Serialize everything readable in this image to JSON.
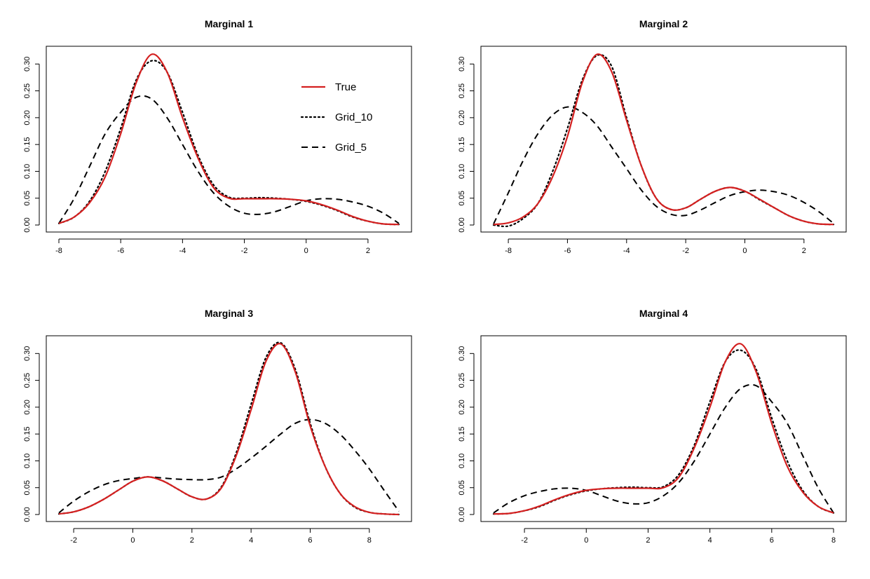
{
  "figure_title": "",
  "chart_data": [
    {
      "type": "line",
      "title": "Marginal 1",
      "xlabel": "",
      "ylabel": "",
      "xlim": [
        -8,
        3
      ],
      "ylim": [
        0,
        0.32
      ],
      "xticks": [
        -8,
        -6,
        -4,
        -2,
        0,
        2
      ],
      "xtick_labels": [
        "-8",
        "-6",
        "-4",
        "-2",
        "0",
        "2"
      ],
      "yticks": [
        0,
        0.05,
        0.1,
        0.15,
        0.2,
        0.25,
        0.3
      ],
      "ytick_labels": [
        "0.00",
        "0.05",
        "0.10",
        "0.15",
        "0.20",
        "0.25",
        "0.30"
      ],
      "legend": {
        "position": "top-right",
        "entries": [
          "True",
          "Grid_10",
          "Grid_5"
        ]
      },
      "series": [
        {
          "name": "True",
          "color": "#d42020",
          "style": "solid",
          "x": [
            -8,
            -7.5,
            -7,
            -6.5,
            -6,
            -5.5,
            -5,
            -4.5,
            -4,
            -3.5,
            -3,
            -2.5,
            -2,
            -1.5,
            -1,
            -0.5,
            0,
            0.5,
            1,
            1.5,
            2,
            2.5,
            3
          ],
          "y": [
            0.003,
            0.015,
            0.042,
            0.09,
            0.17,
            0.265,
            0.318,
            0.285,
            0.2,
            0.125,
            0.07,
            0.05,
            0.049,
            0.049,
            0.049,
            0.048,
            0.045,
            0.038,
            0.028,
            0.016,
            0.007,
            0.002,
            0.001
          ]
        },
        {
          "name": "Grid_10",
          "color": "#000000",
          "style": "dotted",
          "x": [
            -8,
            -7.5,
            -7,
            -6.5,
            -6,
            -5.5,
            -5,
            -4.5,
            -4,
            -3.5,
            -3,
            -2.5,
            -2,
            -1.5,
            -1,
            -0.5,
            0,
            0.5,
            1,
            1.5,
            2,
            2.5,
            3
          ],
          "y": [
            0.003,
            0.015,
            0.045,
            0.1,
            0.18,
            0.27,
            0.306,
            0.285,
            0.21,
            0.13,
            0.075,
            0.052,
            0.05,
            0.051,
            0.05,
            0.048,
            0.044,
            0.037,
            0.027,
            0.015,
            0.007,
            0.002,
            0.001
          ]
        },
        {
          "name": "Grid_5",
          "color": "#000000",
          "style": "dashed",
          "x": [
            -8,
            -7.5,
            -7,
            -6.5,
            -6,
            -5.5,
            -5,
            -4.5,
            -4,
            -3.5,
            -3,
            -2.5,
            -2,
            -1.5,
            -1,
            -0.5,
            0,
            0.5,
            1,
            1.5,
            2,
            2.5,
            3
          ],
          "y": [
            0.003,
            0.05,
            0.11,
            0.17,
            0.21,
            0.238,
            0.235,
            0.2,
            0.15,
            0.1,
            0.06,
            0.035,
            0.022,
            0.02,
            0.025,
            0.035,
            0.045,
            0.049,
            0.048,
            0.043,
            0.035,
            0.022,
            0.003
          ]
        }
      ]
    },
    {
      "type": "line",
      "title": "Marginal 2",
      "xlabel": "",
      "ylabel": "",
      "xlim": [
        -8.5,
        3
      ],
      "ylim": [
        0,
        0.32
      ],
      "xticks": [
        -8,
        -6,
        -4,
        -2,
        0,
        2
      ],
      "xtick_labels": [
        "-8",
        "-6",
        "-4",
        "-2",
        "0",
        "2"
      ],
      "yticks": [
        0,
        0.05,
        0.1,
        0.15,
        0.2,
        0.25,
        0.3
      ],
      "ytick_labels": [
        "0.00",
        "0.05",
        "0.10",
        "0.15",
        "0.20",
        "0.25",
        "0.30"
      ],
      "legend": null,
      "series": [
        {
          "name": "True",
          "color": "#d42020",
          "style": "solid",
          "x": [
            -8.5,
            -8,
            -7.5,
            -7,
            -6.5,
            -6,
            -5.5,
            -5,
            -4.5,
            -4,
            -3.5,
            -3,
            -2.5,
            -2,
            -1.5,
            -1,
            -0.5,
            0,
            0.5,
            1,
            1.5,
            2,
            2.5,
            3
          ],
          "y": [
            0.001,
            0.004,
            0.015,
            0.04,
            0.09,
            0.165,
            0.265,
            0.318,
            0.285,
            0.195,
            0.11,
            0.05,
            0.029,
            0.032,
            0.048,
            0.063,
            0.07,
            0.063,
            0.048,
            0.032,
            0.017,
            0.007,
            0.002,
            0.001
          ]
        },
        {
          "name": "Grid_10",
          "color": "#000000",
          "style": "dotted",
          "x": [
            -8.5,
            -8,
            -7.5,
            -7,
            -6.5,
            -6,
            -5.5,
            -5,
            -4.5,
            -4,
            -3.5,
            -3,
            -2.5,
            -2,
            -1.5,
            -1,
            -0.5,
            0,
            0.5,
            1,
            1.5,
            2,
            2.5,
            3
          ],
          "y": [
            0.0,
            -0.002,
            0.012,
            0.04,
            0.1,
            0.18,
            0.27,
            0.316,
            0.295,
            0.2,
            0.11,
            0.05,
            0.029,
            0.032,
            0.048,
            0.063,
            0.07,
            0.063,
            0.047,
            0.032,
            0.017,
            0.007,
            0.002,
            0.001
          ]
        },
        {
          "name": "Grid_5",
          "color": "#000000",
          "style": "dashed",
          "x": [
            -8.5,
            -8,
            -7.5,
            -7,
            -6.5,
            -6,
            -5.5,
            -5,
            -4.5,
            -4,
            -3.5,
            -3,
            -2.5,
            -2,
            -1.5,
            -1,
            -0.5,
            0,
            0.5,
            1,
            1.5,
            2,
            2.5,
            3
          ],
          "y": [
            0.002,
            0.06,
            0.12,
            0.17,
            0.205,
            0.22,
            0.21,
            0.185,
            0.145,
            0.105,
            0.065,
            0.035,
            0.02,
            0.018,
            0.028,
            0.042,
            0.055,
            0.062,
            0.065,
            0.062,
            0.055,
            0.042,
            0.025,
            0.003
          ]
        }
      ]
    },
    {
      "type": "line",
      "title": "Marginal 3",
      "xlabel": "",
      "ylabel": "",
      "xlim": [
        -2.5,
        9
      ],
      "ylim": [
        0,
        0.32
      ],
      "xticks": [
        -2,
        0,
        2,
        4,
        6,
        8
      ],
      "xtick_labels": [
        "-2",
        "0",
        "2",
        "4",
        "6",
        "8"
      ],
      "yticks": [
        0,
        0.05,
        0.1,
        0.15,
        0.2,
        0.25,
        0.3
      ],
      "ytick_labels": [
        "0.00",
        "0.05",
        "0.10",
        "0.15",
        "0.20",
        "0.25",
        "0.30"
      ],
      "legend": null,
      "series": [
        {
          "name": "True",
          "color": "#d42020",
          "style": "solid",
          "x": [
            -2.5,
            -2,
            -1.5,
            -1,
            -0.5,
            0,
            0.5,
            1,
            1.5,
            2,
            2.5,
            3,
            3.5,
            4,
            4.5,
            5,
            5.5,
            6,
            6.5,
            7,
            7.5,
            8,
            8.5,
            9
          ],
          "y": [
            0.001,
            0.005,
            0.014,
            0.028,
            0.045,
            0.062,
            0.07,
            0.063,
            0.048,
            0.033,
            0.029,
            0.05,
            0.11,
            0.195,
            0.285,
            0.318,
            0.265,
            0.165,
            0.09,
            0.04,
            0.015,
            0.004,
            0.001,
            0.0
          ]
        },
        {
          "name": "Grid_10",
          "color": "#000000",
          "style": "dotted",
          "x": [
            -2.5,
            -2,
            -1.5,
            -1,
            -0.5,
            0,
            0.5,
            1,
            1.5,
            2,
            2.5,
            3,
            3.5,
            4,
            4.5,
            5,
            5.5,
            6,
            6.5,
            7,
            7.5,
            8,
            8.5,
            9
          ],
          "y": [
            0.001,
            0.005,
            0.014,
            0.028,
            0.045,
            0.062,
            0.07,
            0.063,
            0.048,
            0.033,
            0.029,
            0.052,
            0.115,
            0.205,
            0.292,
            0.32,
            0.27,
            0.17,
            0.09,
            0.04,
            0.014,
            0.004,
            0.001,
            0.0
          ]
        },
        {
          "name": "Grid_5",
          "color": "#000000",
          "style": "dashed",
          "x": [
            -2.5,
            -2,
            -1.5,
            -1,
            -0.5,
            0,
            0.5,
            1,
            1.5,
            2,
            2.5,
            3,
            3.5,
            4,
            4.5,
            5,
            5.5,
            6,
            6.5,
            7,
            7.5,
            8,
            8.5,
            9
          ],
          "y": [
            0.003,
            0.025,
            0.042,
            0.055,
            0.063,
            0.067,
            0.07,
            0.068,
            0.066,
            0.065,
            0.065,
            0.07,
            0.085,
            0.105,
            0.127,
            0.15,
            0.17,
            0.177,
            0.17,
            0.15,
            0.12,
            0.085,
            0.045,
            0.006
          ]
        }
      ]
    },
    {
      "type": "line",
      "title": "Marginal 4",
      "xlabel": "",
      "ylabel": "",
      "xlim": [
        -3,
        8
      ],
      "ylim": [
        0,
        0.32
      ],
      "xticks": [
        -2,
        0,
        2,
        4,
        6,
        8
      ],
      "xtick_labels": [
        "-2",
        "0",
        "2",
        "4",
        "6",
        "8"
      ],
      "yticks": [
        0,
        0.05,
        0.1,
        0.15,
        0.2,
        0.25,
        0.3
      ],
      "ytick_labels": [
        "0.00",
        "0.05",
        "0.10",
        "0.15",
        "0.20",
        "0.25",
        "0.30"
      ],
      "legend": null,
      "series": [
        {
          "name": "True",
          "color": "#d42020",
          "style": "solid",
          "x": [
            -3,
            -2.5,
            -2,
            -1.5,
            -1,
            -0.5,
            0,
            0.5,
            1,
            1.5,
            2,
            2.5,
            3,
            3.5,
            4,
            4.5,
            5,
            5.5,
            6,
            6.5,
            7,
            7.5,
            8
          ],
          "y": [
            0.001,
            0.002,
            0.007,
            0.016,
            0.028,
            0.038,
            0.045,
            0.048,
            0.049,
            0.049,
            0.049,
            0.05,
            0.07,
            0.125,
            0.2,
            0.285,
            0.318,
            0.265,
            0.17,
            0.09,
            0.042,
            0.015,
            0.003
          ]
        },
        {
          "name": "Grid_10",
          "color": "#000000",
          "style": "dotted",
          "x": [
            -3,
            -2.5,
            -2,
            -1.5,
            -1,
            -0.5,
            0,
            0.5,
            1,
            1.5,
            2,
            2.5,
            3,
            3.5,
            4,
            4.5,
            5,
            5.5,
            6,
            6.5,
            7,
            7.5,
            8
          ],
          "y": [
            0.001,
            0.002,
            0.007,
            0.015,
            0.027,
            0.037,
            0.044,
            0.048,
            0.05,
            0.051,
            0.05,
            0.052,
            0.075,
            0.13,
            0.21,
            0.285,
            0.306,
            0.27,
            0.18,
            0.1,
            0.045,
            0.015,
            0.003
          ]
        },
        {
          "name": "Grid_5",
          "color": "#000000",
          "style": "dashed",
          "x": [
            -3,
            -2.5,
            -2,
            -1.5,
            -1,
            -0.5,
            0,
            0.5,
            1,
            1.5,
            2,
            2.5,
            3,
            3.5,
            4,
            4.5,
            5,
            5.5,
            6,
            6.5,
            7,
            7.5,
            8
          ],
          "y": [
            0.003,
            0.022,
            0.035,
            0.043,
            0.048,
            0.049,
            0.045,
            0.035,
            0.025,
            0.02,
            0.022,
            0.035,
            0.06,
            0.1,
            0.15,
            0.2,
            0.235,
            0.24,
            0.21,
            0.17,
            0.11,
            0.05,
            0.003
          ]
        }
      ]
    }
  ]
}
